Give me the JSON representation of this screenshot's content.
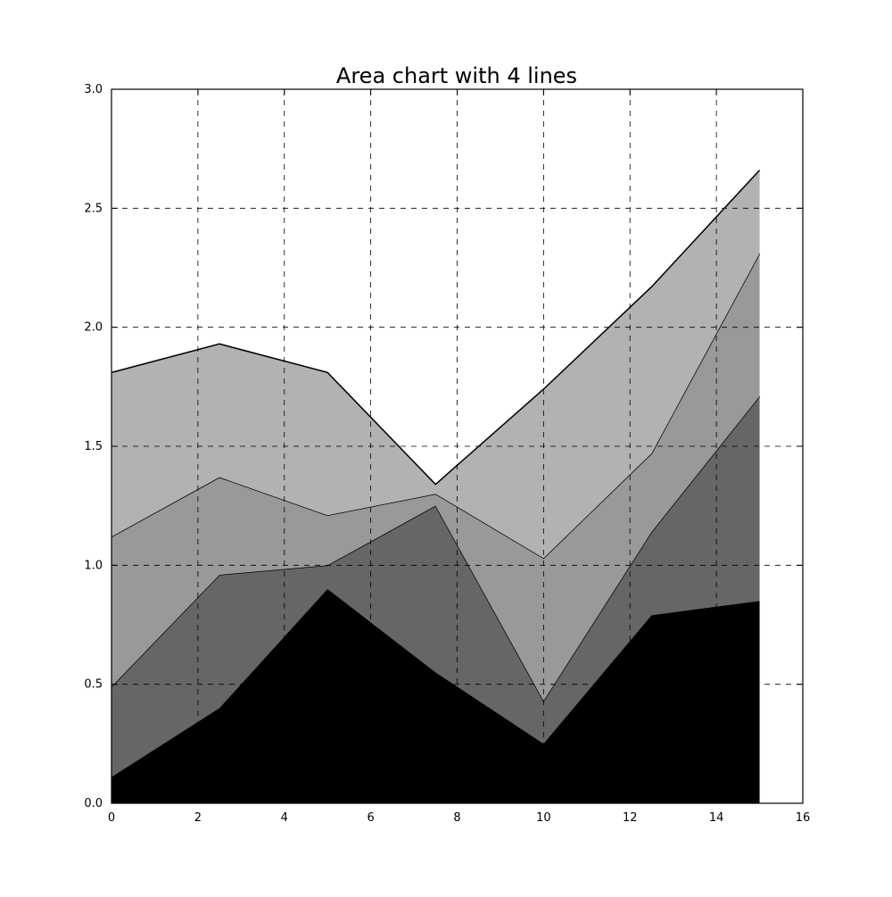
{
  "chart_data": {
    "type": "area",
    "stacked": true,
    "title": "Area chart with 4 lines",
    "xlabel": "",
    "ylabel": "",
    "xlim": [
      0,
      16
    ],
    "ylim": [
      0,
      3.0
    ],
    "x_ticks": [
      0,
      2,
      4,
      6,
      8,
      10,
      12,
      14,
      16
    ],
    "y_ticks": [
      0.0,
      0.5,
      1.0,
      1.5,
      2.0,
      2.5,
      3.0
    ],
    "x_tick_labels": [
      "0",
      "2",
      "4",
      "6",
      "8",
      "10",
      "12",
      "14",
      "16"
    ],
    "y_tick_labels": [
      "0.0",
      "0.5",
      "1.0",
      "1.5",
      "2.0",
      "2.5",
      "3.0"
    ],
    "grid": true,
    "grid_style": "dashed",
    "x": [
      0,
      2.5,
      5,
      7.5,
      10,
      12.5,
      15
    ],
    "series": [
      {
        "values": [
          0.11,
          0.4,
          0.9,
          0.55,
          0.25,
          0.79,
          0.85
        ],
        "color": "#000000"
      },
      {
        "values": [
          0.38,
          0.56,
          0.1,
          0.7,
          0.18,
          0.35,
          0.86
        ],
        "color": "#666666"
      },
      {
        "values": [
          0.63,
          0.41,
          0.21,
          0.05,
          0.6,
          0.33,
          0.6
        ],
        "color": "#999999"
      },
      {
        "values": [
          0.69,
          0.56,
          0.6,
          0.04,
          0.71,
          0.7,
          0.35
        ],
        "color": "#b2b2b2"
      }
    ]
  }
}
